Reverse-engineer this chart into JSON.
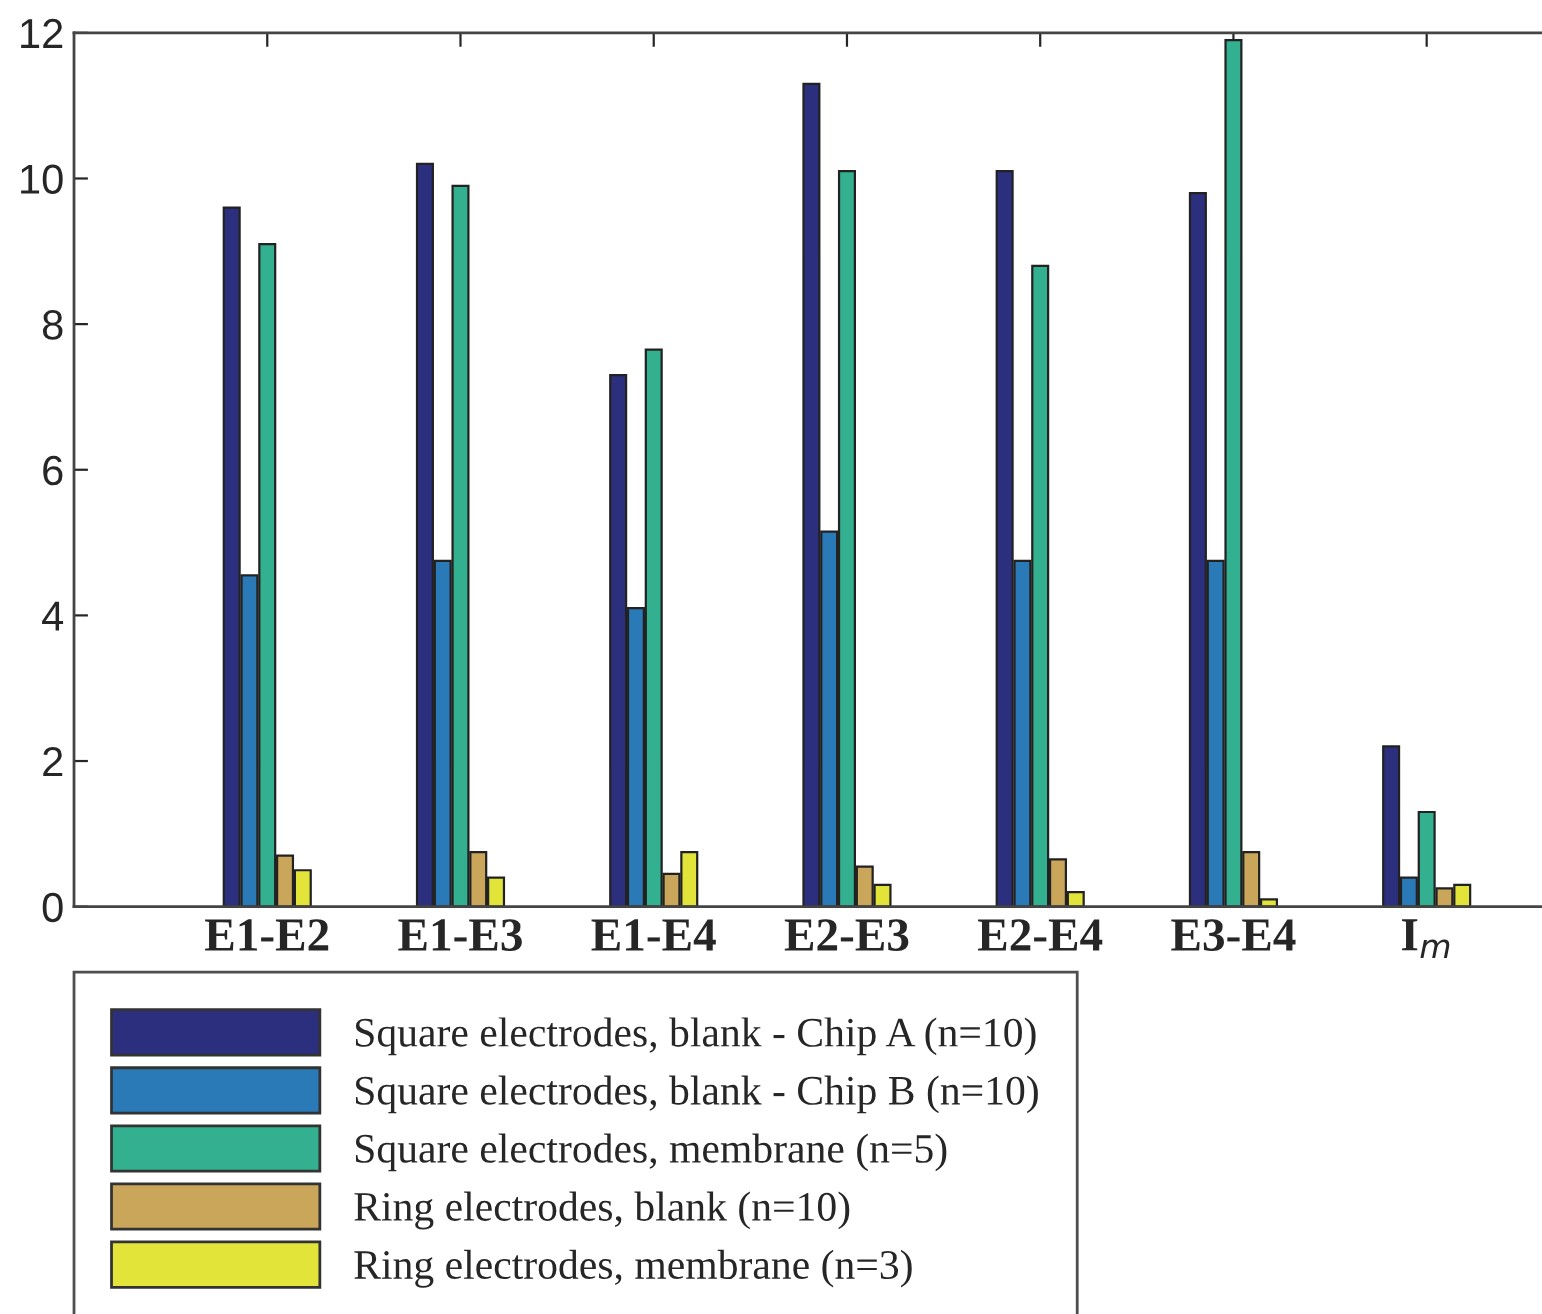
{
  "chart_data": {
    "type": "bar",
    "categories": [
      "E1-E2",
      "E1-E3",
      "E1-E4",
      "E2-E3",
      "E2-E4",
      "E3-E4",
      "I$_{m}$"
    ],
    "series": [
      {
        "name": "Square electrodes, blank - Chip A (n=10)",
        "color": "#2c2f7e",
        "values": [
          9.6,
          10.2,
          7.3,
          11.3,
          10.1,
          9.8,
          2.2
        ]
      },
      {
        "name": "Square electrodes, blank - Chip B (n=10)",
        "color": "#2a7ab8",
        "values": [
          4.55,
          4.75,
          4.1,
          5.15,
          4.75,
          4.75,
          0.4
        ]
      },
      {
        "name": "Square electrodes, membrane (n=5)",
        "color": "#33b08f",
        "values": [
          9.1,
          9.9,
          7.65,
          10.1,
          8.8,
          11.9,
          1.3
        ]
      },
      {
        "name": "Ring electrodes, blank (n=10)",
        "color": "#caa65a",
        "values": [
          0.7,
          0.75,
          0.45,
          0.55,
          0.65,
          0.75,
          0.25
        ]
      },
      {
        "name": "Ring electrodes, membrane (n=3)",
        "color": "#e3e43a",
        "values": [
          0.5,
          0.4,
          0.75,
          0.3,
          0.2,
          0.1,
          0.3
        ]
      }
    ],
    "ylim": [
      0,
      12
    ],
    "yticks": [
      0,
      2,
      4,
      6,
      8,
      10,
      12
    ],
    "grid": false,
    "legend": "bottom"
  }
}
